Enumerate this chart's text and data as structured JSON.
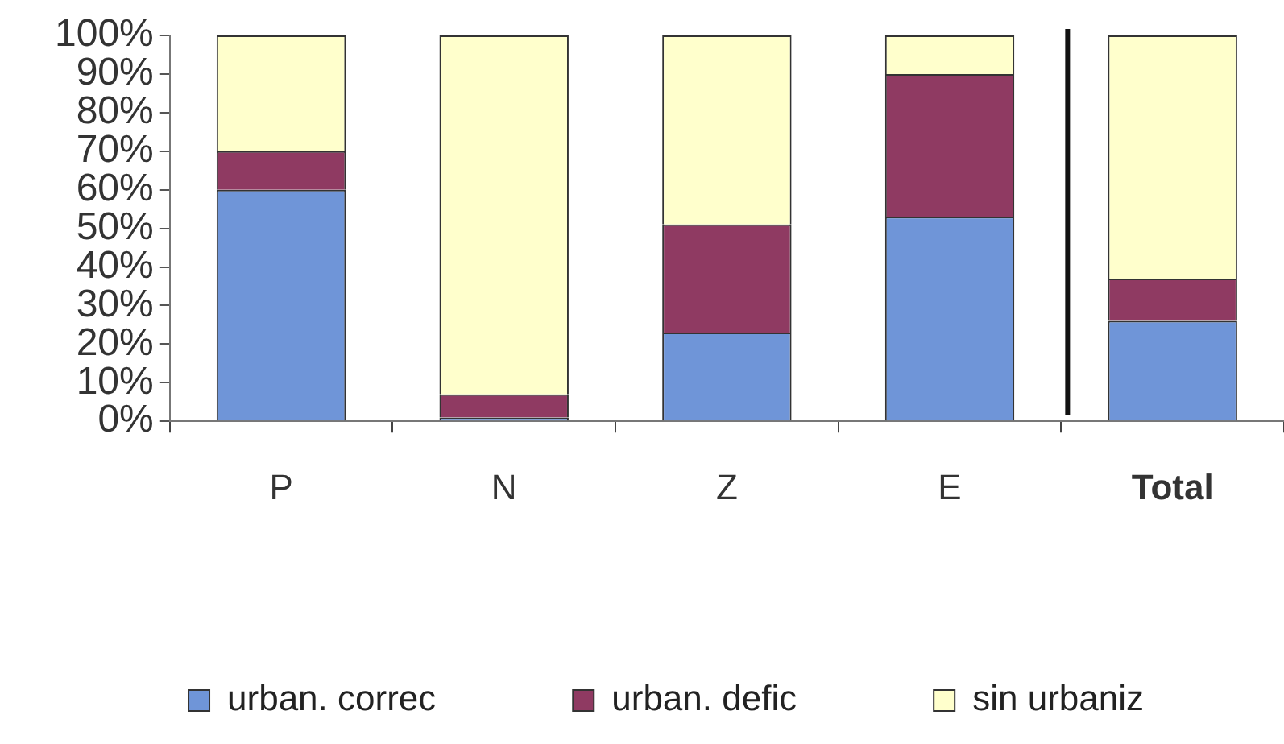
{
  "chart_data": {
    "type": "bar",
    "stacked": true,
    "categories": [
      "P",
      "N",
      "Z",
      "E",
      "Total"
    ],
    "series": [
      {
        "name": "urban. correc",
        "color": "#6f95d8",
        "values": [
          60,
          1,
          23,
          53,
          26
        ]
      },
      {
        "name": "urban. defic",
        "color": "#8f3a62",
        "values": [
          10,
          6,
          28,
          37,
          11
        ]
      },
      {
        "name": "sin urbaniz",
        "color": "#ffffcc",
        "values": [
          30,
          93,
          49,
          10,
          63
        ]
      }
    ],
    "ylim": [
      0,
      100
    ],
    "yticks": [
      {
        "value": 0,
        "label": "0%"
      },
      {
        "value": 10,
        "label": "10%"
      },
      {
        "value": 20,
        "label": "20%"
      },
      {
        "value": 30,
        "label": "30%"
      },
      {
        "value": 40,
        "label": "40%"
      },
      {
        "value": 50,
        "label": "50%"
      },
      {
        "value": 60,
        "label": "60%"
      },
      {
        "value": 70,
        "label": "70%"
      },
      {
        "value": 80,
        "label": "80%"
      },
      {
        "value": 90,
        "label": "90%"
      },
      {
        "value": 100,
        "label": "100%"
      }
    ],
    "grid": false,
    "legend": "bottom"
  }
}
